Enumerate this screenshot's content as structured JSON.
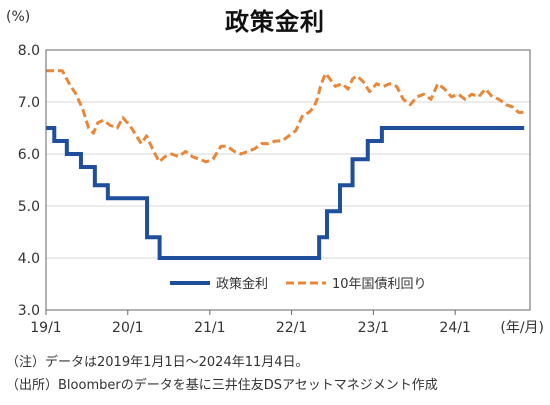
{
  "chart_data": {
    "type": "line",
    "title": "政策金利",
    "yunit": "(%)",
    "xunit": "(年/月)",
    "ylim": [
      3.0,
      8.0
    ],
    "yticks": [
      "3.0",
      "4.0",
      "5.0",
      "6.0",
      "7.0",
      "8.0"
    ],
    "xticks": [
      "19/1",
      "20/1",
      "21/1",
      "22/1",
      "23/1",
      "24/1"
    ],
    "grid": true,
    "legend_position": "lower-right",
    "series": [
      {
        "name": "政策金利",
        "color": "#1f4e9c",
        "style": "solid",
        "points": [
          [
            "2019-01-01",
            6.5
          ],
          [
            "2019-02-07",
            6.25
          ],
          [
            "2019-04-04",
            6.0
          ],
          [
            "2019-06-06",
            5.75
          ],
          [
            "2019-08-07",
            5.4
          ],
          [
            "2019-10-04",
            5.15
          ],
          [
            "2020-03-27",
            4.4
          ],
          [
            "2020-05-22",
            4.0
          ],
          [
            "2022-05-04",
            4.4
          ],
          [
            "2022-06-08",
            4.9
          ],
          [
            "2022-08-05",
            5.4
          ],
          [
            "2022-09-30",
            5.9
          ],
          [
            "2022-12-07",
            6.25
          ],
          [
            "2023-02-08",
            6.5
          ],
          [
            "2024-11-04",
            6.5
          ]
        ]
      },
      {
        "name": "10年国債利回り",
        "color": "#e8873a",
        "style": "dashed",
        "points": [
          [
            "2019-01-01",
            7.6
          ],
          [
            "2019-03-15",
            7.6
          ],
          [
            "2019-04-15",
            7.35
          ],
          [
            "2019-05-15",
            7.15
          ],
          [
            "2019-06-15",
            6.85
          ],
          [
            "2019-07-10",
            6.5
          ],
          [
            "2019-08-01",
            6.4
          ],
          [
            "2019-08-20",
            6.6
          ],
          [
            "2019-09-15",
            6.65
          ],
          [
            "2019-10-15",
            6.55
          ],
          [
            "2019-11-15",
            6.5
          ],
          [
            "2019-12-10",
            6.7
          ],
          [
            "2020-01-10",
            6.55
          ],
          [
            "2020-02-01",
            6.4
          ],
          [
            "2020-03-01",
            6.2
          ],
          [
            "2020-03-25",
            6.35
          ],
          [
            "2020-04-20",
            6.1
          ],
          [
            "2020-05-20",
            5.85
          ],
          [
            "2020-06-15",
            5.95
          ],
          [
            "2020-07-15",
            6.0
          ],
          [
            "2020-08-15",
            5.95
          ],
          [
            "2020-09-15",
            6.05
          ],
          [
            "2020-10-15",
            5.95
          ],
          [
            "2020-11-15",
            5.9
          ],
          [
            "2020-12-15",
            5.85
          ],
          [
            "2021-01-15",
            5.9
          ],
          [
            "2021-02-20",
            6.15
          ],
          [
            "2021-03-20",
            6.15
          ],
          [
            "2021-04-20",
            6.05
          ],
          [
            "2021-05-20",
            6.0
          ],
          [
            "2021-06-20",
            6.05
          ],
          [
            "2021-07-20",
            6.1
          ],
          [
            "2021-08-20",
            6.2
          ],
          [
            "2021-09-20",
            6.2
          ],
          [
            "2021-10-20",
            6.25
          ],
          [
            "2021-11-20",
            6.25
          ],
          [
            "2021-12-20",
            6.35
          ],
          [
            "2022-01-20",
            6.45
          ],
          [
            "2022-02-20",
            6.75
          ],
          [
            "2022-03-20",
            6.8
          ],
          [
            "2022-04-10",
            6.9
          ],
          [
            "2022-04-25",
            7.05
          ],
          [
            "2022-05-10",
            7.3
          ],
          [
            "2022-06-01",
            7.55
          ],
          [
            "2022-06-20",
            7.45
          ],
          [
            "2022-07-15",
            7.3
          ],
          [
            "2022-08-15",
            7.35
          ],
          [
            "2022-09-10",
            7.25
          ],
          [
            "2022-10-01",
            7.45
          ],
          [
            "2022-10-20",
            7.5
          ],
          [
            "2022-11-15",
            7.4
          ],
          [
            "2022-12-15",
            7.2
          ],
          [
            "2023-01-15",
            7.35
          ],
          [
            "2023-02-15",
            7.3
          ],
          [
            "2023-03-15",
            7.35
          ],
          [
            "2023-04-15",
            7.3
          ],
          [
            "2023-05-15",
            7.05
          ],
          [
            "2023-06-15",
            6.95
          ],
          [
            "2023-07-15",
            7.1
          ],
          [
            "2023-08-15",
            7.15
          ],
          [
            "2023-09-15",
            7.05
          ],
          [
            "2023-10-15",
            7.35
          ],
          [
            "2023-11-15",
            7.25
          ],
          [
            "2023-12-15",
            7.1
          ],
          [
            "2024-01-15",
            7.15
          ],
          [
            "2024-02-15",
            7.05
          ],
          [
            "2024-03-15",
            7.15
          ],
          [
            "2024-04-15",
            7.1
          ],
          [
            "2024-05-15",
            7.25
          ],
          [
            "2024-06-15",
            7.1
          ],
          [
            "2024-07-15",
            7.05
          ],
          [
            "2024-08-15",
            6.95
          ],
          [
            "2024-09-15",
            6.9
          ],
          [
            "2024-10-10",
            6.8
          ],
          [
            "2024-11-04",
            6.8
          ]
        ]
      }
    ]
  },
  "notes": [
    "（注）データは2019年1月1日～2024年11月4日。",
    "（出所）Bloomberのデータを基に三井住友DSアセットマネジメント作成"
  ]
}
